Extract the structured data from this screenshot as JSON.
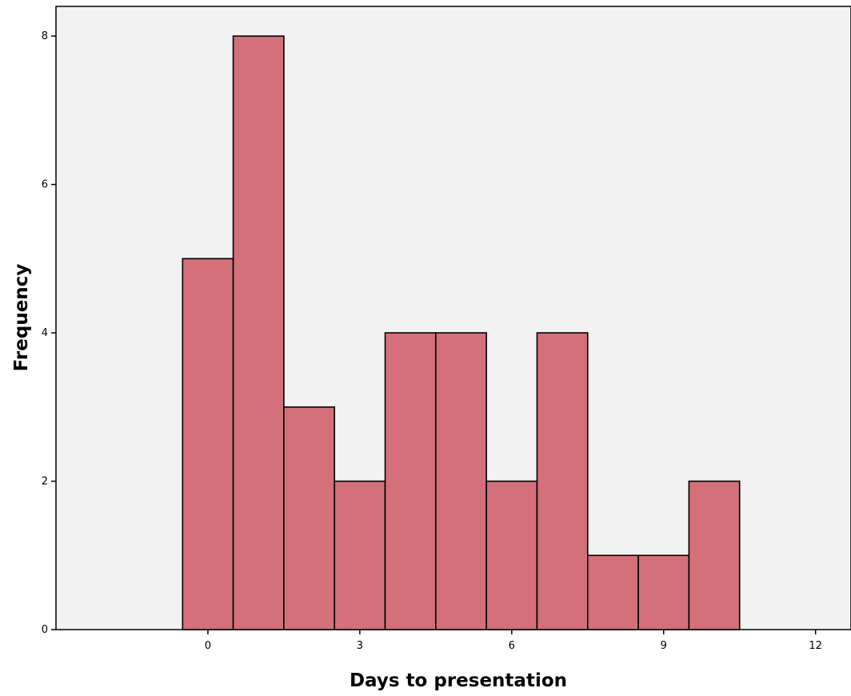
{
  "chart_data": {
    "type": "bar",
    "subtype": "histogram",
    "title": "",
    "xlabel": "Days to presentation",
    "ylabel": "Frequency",
    "x": [
      0,
      1,
      2,
      3,
      4,
      5,
      6,
      7,
      8,
      9,
      10
    ],
    "values": [
      5,
      8,
      3,
      2,
      4,
      4,
      2,
      4,
      1,
      1,
      2
    ],
    "bin_width": 1,
    "xlim": [
      -3,
      12.7
    ],
    "ylim": [
      0,
      8.4
    ],
    "xticks": [
      0,
      3,
      6,
      9,
      12
    ],
    "yticks": [
      0,
      2,
      4,
      6,
      8
    ],
    "grid": false,
    "legend": "none",
    "colors": {
      "bar_fill": "#d4707a",
      "bar_stroke": "#000000",
      "plot_background": "#f2f2f2",
      "axis": "#000000"
    }
  }
}
